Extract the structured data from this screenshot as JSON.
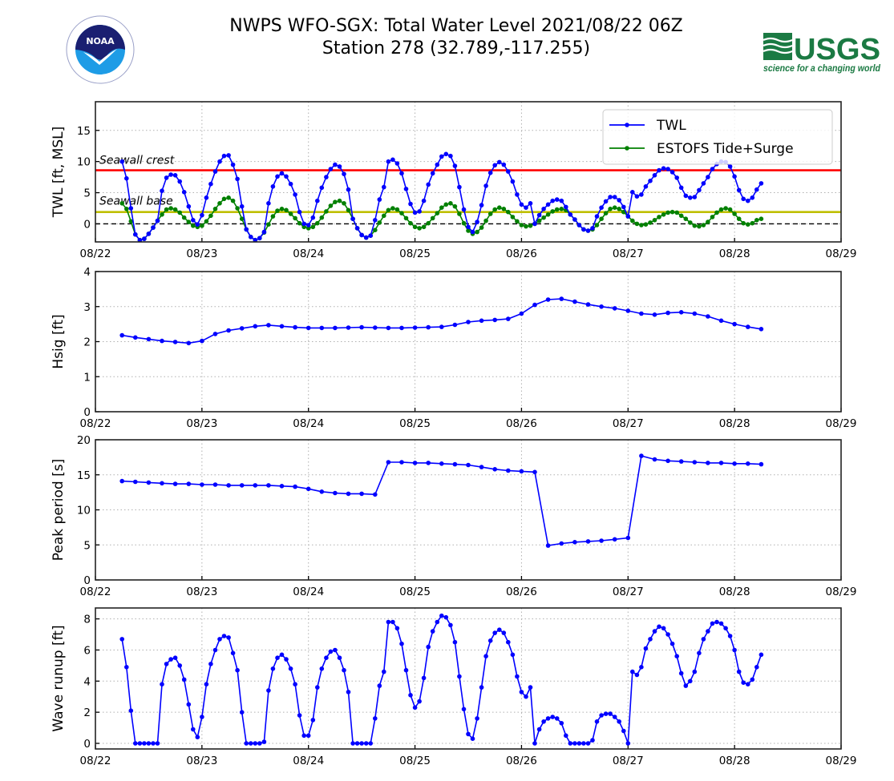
{
  "header": {
    "title_line1": "NWPS WFO-SGX: Total Water Level 2021/08/22 06Z",
    "title_line2": "Station 278 (32.789,-117.255)",
    "left_logo": "NOAA",
    "right_logo": "USGS",
    "right_logo_tagline": "science for a changing world"
  },
  "colors": {
    "twl": "#0000ff",
    "tide": "#008000",
    "seawall_crest": "#ff0000",
    "seawall_base": "#bfbf00",
    "zero_line": "#000000",
    "noaa_navy": "#1a1f71",
    "noaa_blue": "#1e9ce6",
    "usgs_green": "#1b7a43"
  },
  "chart_data": [
    {
      "id": "twl",
      "type": "line",
      "title": "",
      "xlabel": "",
      "ylabel": "TWL [ft, MSL]",
      "x_unit": "hours since 08/22 00Z",
      "xlim": [
        0,
        168
      ],
      "xticks": [
        {
          "value": 0,
          "label": "08/22"
        },
        {
          "value": 24,
          "label": "08/23"
        },
        {
          "value": 48,
          "label": "08/24"
        },
        {
          "value": 72,
          "label": "08/25"
        },
        {
          "value": 96,
          "label": "08/26"
        },
        {
          "value": 120,
          "label": "08/27"
        },
        {
          "value": 144,
          "label": "08/28"
        },
        {
          "value": 168,
          "label": "08/29"
        }
      ],
      "ylim": [
        -2.9,
        19.6
      ],
      "yticks": [
        0,
        5,
        10,
        15
      ],
      "grid": true,
      "legend": {
        "position": "top-right",
        "entries": [
          "TWL",
          "ESTOFS Tide+Surge"
        ]
      },
      "reference_lines": [
        {
          "name": "Seawall crest",
          "value": 8.6,
          "label": "Seawall crest"
        },
        {
          "name": "Seawall base",
          "value": 1.9,
          "label": "Seawall base"
        },
        {
          "name": "MSL zero",
          "value": 0,
          "label": ""
        }
      ],
      "x_start": 6,
      "x_step": 1,
      "series": [
        {
          "name": "TWL",
          "values": [
            10.0,
            7.3,
            2.5,
            -1.7,
            -2.6,
            -2.4,
            -1.6,
            -0.6,
            0.5,
            5.3,
            7.4,
            7.9,
            7.8,
            6.8,
            5.1,
            2.8,
            0.6,
            -0.1,
            1.4,
            4.2,
            6.4,
            8.4,
            10.0,
            10.9,
            11.0,
            9.5,
            7.2,
            2.8,
            -0.9,
            -2.1,
            -2.6,
            -2.3,
            -1.3,
            3.3,
            6.0,
            7.6,
            8.1,
            7.6,
            6.4,
            4.7,
            1.9,
            0.0,
            -0.2,
            1.0,
            3.7,
            5.8,
            7.5,
            8.8,
            9.5,
            9.2,
            8.0,
            5.5,
            0.8,
            -0.7,
            -1.8,
            -2.2,
            -1.9,
            0.6,
            3.9,
            5.9,
            10.0,
            10.3,
            9.7,
            8.1,
            5.6,
            3.2,
            1.8,
            2.0,
            3.7,
            6.3,
            8.1,
            9.5,
            10.8,
            11.2,
            10.9,
            9.3,
            5.9,
            2.3,
            -0.5,
            -1.3,
            0.3,
            3.0,
            6.1,
            8.2,
            9.4,
            9.9,
            9.5,
            8.4,
            6.8,
            4.7,
            3.1,
            2.6,
            3.3,
            0.0,
            1.4,
            2.4,
            3.1,
            3.7,
            3.9,
            3.7,
            2.7,
            1.5,
            0.7,
            -0.2,
            -0.9,
            -1.1,
            -0.7,
            1.2,
            2.6,
            3.6,
            4.3,
            4.3,
            3.8,
            2.7,
            1.2,
            5.1,
            4.4,
            4.7,
            6.0,
            6.9,
            7.8,
            8.6,
            8.9,
            8.8,
            8.3,
            7.4,
            5.8,
            4.5,
            4.2,
            4.3,
            5.4,
            6.5,
            7.5,
            8.8,
            9.6,
            10.0,
            9.9,
            9.2,
            7.6,
            5.4,
            4.0,
            3.7,
            4.2,
            5.5,
            6.5
          ]
        },
        {
          "name": "ESTOFS Tide+Surge",
          "values": [
            3.3,
            2.4,
            0.4,
            -1.7,
            -2.6,
            -2.4,
            -1.6,
            -0.6,
            0.5,
            1.5,
            2.3,
            2.5,
            2.3,
            1.8,
            1.0,
            0.3,
            -0.3,
            -0.5,
            -0.3,
            0.4,
            1.3,
            2.4,
            3.3,
            4.0,
            4.2,
            3.7,
            2.5,
            0.8,
            -0.9,
            -2.1,
            -2.6,
            -2.3,
            -1.4,
            -0.1,
            1.2,
            2.1,
            2.4,
            2.2,
            1.6,
            0.9,
            0.1,
            -0.5,
            -0.7,
            -0.5,
            0.1,
            1.0,
            2.0,
            2.9,
            3.5,
            3.7,
            3.3,
            2.2,
            0.8,
            -0.7,
            -1.8,
            -2.2,
            -1.9,
            -1.0,
            0.2,
            1.3,
            2.2,
            2.5,
            2.3,
            1.7,
            0.9,
            0.1,
            -0.5,
            -0.7,
            -0.5,
            0.1,
            0.9,
            1.7,
            2.6,
            3.1,
            3.3,
            2.8,
            1.6,
            0.1,
            -1.1,
            -1.6,
            -1.3,
            -0.6,
            0.5,
            1.6,
            2.3,
            2.6,
            2.4,
            1.9,
            1.1,
            0.4,
            -0.2,
            -0.4,
            -0.3,
            0.0,
            0.5,
            1.0,
            1.5,
            2.0,
            2.3,
            2.4,
            2.2,
            1.5,
            0.7,
            -0.2,
            -0.9,
            -1.1,
            -0.9,
            -0.2,
            0.8,
            1.7,
            2.4,
            2.6,
            2.4,
            1.9,
            1.2,
            0.5,
            0.0,
            -0.2,
            -0.1,
            0.2,
            0.6,
            1.1,
            1.5,
            1.8,
            1.9,
            1.8,
            1.3,
            0.8,
            0.2,
            -0.3,
            -0.4,
            -0.2,
            0.3,
            1.1,
            1.8,
            2.3,
            2.5,
            2.3,
            1.6,
            0.8,
            0.1,
            -0.1,
            0.1,
            0.6,
            0.8
          ]
        }
      ]
    },
    {
      "id": "hsig",
      "type": "line",
      "title": "",
      "xlabel": "",
      "ylabel": "Hsig [ft]",
      "x_unit": "hours since 08/22 00Z",
      "xlim": [
        0,
        168
      ],
      "xticks": [
        {
          "value": 0,
          "label": "08/22"
        },
        {
          "value": 24,
          "label": "08/23"
        },
        {
          "value": 48,
          "label": "08/24"
        },
        {
          "value": 72,
          "label": "08/25"
        },
        {
          "value": 96,
          "label": "08/26"
        },
        {
          "value": 120,
          "label": "08/27"
        },
        {
          "value": 144,
          "label": "08/28"
        },
        {
          "value": 168,
          "label": "08/29"
        }
      ],
      "ylim": [
        0,
        4
      ],
      "yticks": [
        0,
        1,
        2,
        3,
        4
      ],
      "grid": true,
      "x_start": 6,
      "x_step": 3,
      "series": [
        {
          "name": "Hsig",
          "values": [
            2.18,
            2.12,
            2.07,
            2.02,
            1.99,
            1.96,
            2.02,
            2.22,
            2.32,
            2.38,
            2.44,
            2.47,
            2.44,
            2.41,
            2.39,
            2.39,
            2.39,
            2.4,
            2.41,
            2.4,
            2.39,
            2.39,
            2.4,
            2.41,
            2.42,
            2.48,
            2.56,
            2.6,
            2.62,
            2.65,
            2.8,
            3.05,
            3.2,
            3.22,
            3.14,
            3.06,
            3.0,
            2.95,
            2.88,
            2.8,
            2.77,
            2.82,
            2.84,
            2.8,
            2.72,
            2.6,
            2.5,
            2.42,
            2.36
          ]
        }
      ]
    },
    {
      "id": "tp",
      "type": "line",
      "title": "",
      "xlabel": "",
      "ylabel": "Peak period [s]",
      "x_unit": "hours since 08/22 00Z",
      "xlim": [
        0,
        168
      ],
      "xticks": [
        {
          "value": 0,
          "label": "08/22"
        },
        {
          "value": 24,
          "label": "08/23"
        },
        {
          "value": 48,
          "label": "08/24"
        },
        {
          "value": 72,
          "label": "08/25"
        },
        {
          "value": 96,
          "label": "08/26"
        },
        {
          "value": 120,
          "label": "08/27"
        },
        {
          "value": 144,
          "label": "08/28"
        },
        {
          "value": 168,
          "label": "08/29"
        }
      ],
      "ylim": [
        0,
        20
      ],
      "yticks": [
        0,
        5,
        10,
        15,
        20
      ],
      "grid": true,
      "x_start": 6,
      "x_step": 3,
      "series": [
        {
          "name": "Peak period",
          "values": [
            14.1,
            14.0,
            13.9,
            13.8,
            13.7,
            13.7,
            13.6,
            13.6,
            13.5,
            13.5,
            13.5,
            13.5,
            13.4,
            13.3,
            13.0,
            12.6,
            12.4,
            12.3,
            12.3,
            12.2,
            16.8,
            16.8,
            16.7,
            16.7,
            16.6,
            16.5,
            16.4,
            16.1,
            15.8,
            15.6,
            15.5,
            15.4,
            4.9,
            5.2,
            5.4,
            5.5,
            5.6,
            5.8,
            6.0,
            17.7,
            17.2,
            17.0,
            16.9,
            16.8,
            16.7,
            16.7,
            16.6,
            16.6,
            16.5
          ]
        }
      ]
    },
    {
      "id": "runup",
      "type": "line",
      "title": "",
      "xlabel": "",
      "ylabel": "Wave runup [ft]",
      "x_unit": "hours since 08/22 00Z",
      "xlim": [
        0,
        168
      ],
      "xticks": [
        {
          "value": 0,
          "label": "08/22"
        },
        {
          "value": 24,
          "label": "08/23"
        },
        {
          "value": 48,
          "label": "08/24"
        },
        {
          "value": 72,
          "label": "08/25"
        },
        {
          "value": 96,
          "label": "08/26"
        },
        {
          "value": 120,
          "label": "08/27"
        },
        {
          "value": 144,
          "label": "08/28"
        },
        {
          "value": 168,
          "label": "08/29"
        }
      ],
      "ylim": [
        -0.36,
        8.7
      ],
      "yticks": [
        0,
        2,
        4,
        6,
        8
      ],
      "grid": true,
      "x_start": 6,
      "x_step": 1,
      "series": [
        {
          "name": "Wave runup",
          "values": [
            6.7,
            4.9,
            2.1,
            0,
            0,
            0,
            0,
            0,
            0,
            3.8,
            5.1,
            5.4,
            5.5,
            5.0,
            4.1,
            2.5,
            0.9,
            0.4,
            1.7,
            3.8,
            5.1,
            6.0,
            6.7,
            6.9,
            6.8,
            5.8,
            4.7,
            2.0,
            0,
            0,
            0,
            0,
            0.1,
            3.4,
            4.8,
            5.5,
            5.7,
            5.4,
            4.8,
            3.8,
            1.8,
            0.5,
            0.5,
            1.5,
            3.6,
            4.8,
            5.5,
            5.9,
            6.0,
            5.5,
            4.7,
            3.3,
            0,
            0,
            0,
            0,
            0,
            1.6,
            3.7,
            4.6,
            7.8,
            7.8,
            7.4,
            6.4,
            4.7,
            3.1,
            2.3,
            2.7,
            4.2,
            6.2,
            7.2,
            7.8,
            8.2,
            8.1,
            7.6,
            6.5,
            4.3,
            2.2,
            0.6,
            0.3,
            1.6,
            3.6,
            5.6,
            6.6,
            7.1,
            7.3,
            7.1,
            6.5,
            5.7,
            4.3,
            3.3,
            3.0,
            3.6,
            0,
            0.9,
            1.4,
            1.6,
            1.7,
            1.6,
            1.3,
            0.5,
            0,
            0,
            0,
            0,
            0,
            0.2,
            1.4,
            1.8,
            1.9,
            1.9,
            1.7,
            1.4,
            0.8,
            0,
            4.6,
            4.4,
            4.9,
            6.1,
            6.7,
            7.2,
            7.5,
            7.4,
            7.0,
            6.4,
            5.6,
            4.5,
            3.7,
            4.0,
            4.6,
            5.8,
            6.7,
            7.2,
            7.7,
            7.8,
            7.7,
            7.4,
            6.9,
            6.0,
            4.6,
            3.9,
            3.8,
            4.1,
            4.9,
            5.7
          ]
        }
      ]
    }
  ]
}
